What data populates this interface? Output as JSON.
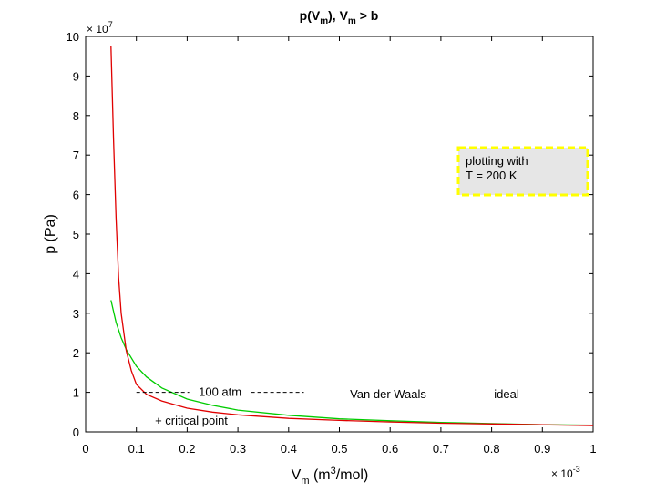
{
  "chart_data": {
    "type": "line",
    "title": "p(V_m), V_m > b",
    "title_parts": {
      "p": "p(V",
      "sub1": "m",
      "mid": "), V",
      "sub2": "m",
      "end": " > b"
    },
    "xlabel_parts": {
      "v": "V",
      "sub": "m",
      "open": " (m",
      "sup": "3",
      "close": "/mol)"
    },
    "ylabel": "p (Pa)",
    "x_multiplier": {
      "base": "× 10",
      "exp": "-3"
    },
    "y_multiplier": {
      "base": "× 10",
      "exp": "7"
    },
    "xlim": [
      0,
      1
    ],
    "ylim": [
      0,
      10
    ],
    "xticks": [
      "0",
      "0.1",
      "0.2",
      "0.3",
      "0.4",
      "0.5",
      "0.6",
      "0.7",
      "0.8",
      "0.9",
      "1"
    ],
    "yticks": [
      "0",
      "1",
      "2",
      "3",
      "4",
      "5",
      "6",
      "7",
      "8",
      "9",
      "10"
    ],
    "grid": false,
    "series": [
      {
        "name": "Van der Waals",
        "color": "#e00000",
        "x": [
          0.05,
          0.055,
          0.06,
          0.065,
          0.07,
          0.08,
          0.09,
          0.1,
          0.12,
          0.15,
          0.2,
          0.25,
          0.3,
          0.4,
          0.5,
          0.6,
          0.7,
          0.8,
          0.9,
          1.0
        ],
        "y": [
          9.75,
          7.4,
          5.4,
          3.9,
          3.0,
          2.05,
          1.55,
          1.2,
          0.95,
          0.78,
          0.6,
          0.5,
          0.43,
          0.34,
          0.29,
          0.25,
          0.22,
          0.2,
          0.18,
          0.16
        ]
      },
      {
        "name": "ideal",
        "color": "#00cc00",
        "x": [
          0.05,
          0.06,
          0.07,
          0.08,
          0.1,
          0.12,
          0.15,
          0.2,
          0.25,
          0.3,
          0.4,
          0.5,
          0.6,
          0.7,
          0.8,
          0.9,
          1.0
        ],
        "y": [
          3.33,
          2.77,
          2.38,
          2.08,
          1.66,
          1.39,
          1.11,
          0.83,
          0.67,
          0.55,
          0.42,
          0.33,
          0.28,
          0.24,
          0.21,
          0.18,
          0.17
        ]
      }
    ],
    "reference_line": {
      "label": "100 atm",
      "y": 1.0,
      "x_start": 0.1,
      "x_end": 0.43,
      "color": "#000000"
    },
    "legend": {
      "placement": "bottom-right",
      "vdw_label": "Van der Waals",
      "vdw_color": "#e00000",
      "ideal_label": "ideal",
      "ideal_color": "#00cc00",
      "critical_label": "+ critical point",
      "critical_color": "#e000e0"
    },
    "annotation_box": {
      "line1": "plotting with",
      "line2": "T = 200 K",
      "text_color": "#e00000",
      "fill": "#e6e6e6",
      "border_color": "#ffff00",
      "placement": "top-right"
    }
  }
}
